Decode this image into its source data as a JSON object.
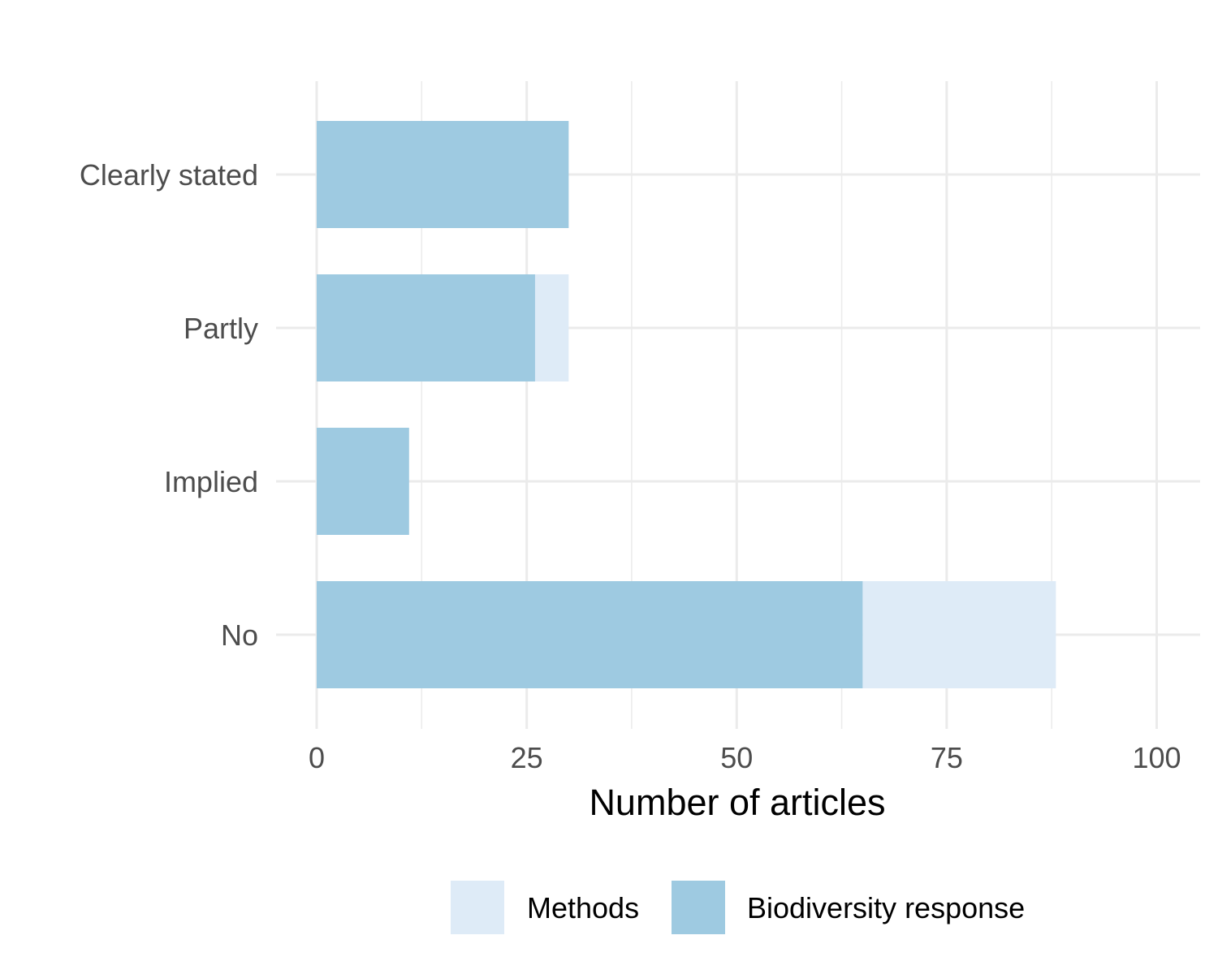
{
  "chart_data": {
    "type": "bar",
    "orientation": "horizontal",
    "stacked": true,
    "categories": [
      "Clearly stated",
      "Partly",
      "Implied",
      "No"
    ],
    "series": [
      {
        "name": "Biodiversity response",
        "values": [
          30,
          26,
          11,
          65
        ],
        "color": "#9ecae1"
      },
      {
        "name": "Methods",
        "values": [
          0,
          4,
          0,
          23
        ],
        "color": "#deebf7"
      }
    ],
    "legend_order": [
      "Methods",
      "Biodiversity response"
    ],
    "title": "",
    "xlabel": "Number of articles",
    "ylabel": "",
    "xlim": [
      0,
      100
    ],
    "xticks": [
      0,
      25,
      50,
      75,
      100
    ],
    "grid": true,
    "legend_position": "bottom"
  }
}
